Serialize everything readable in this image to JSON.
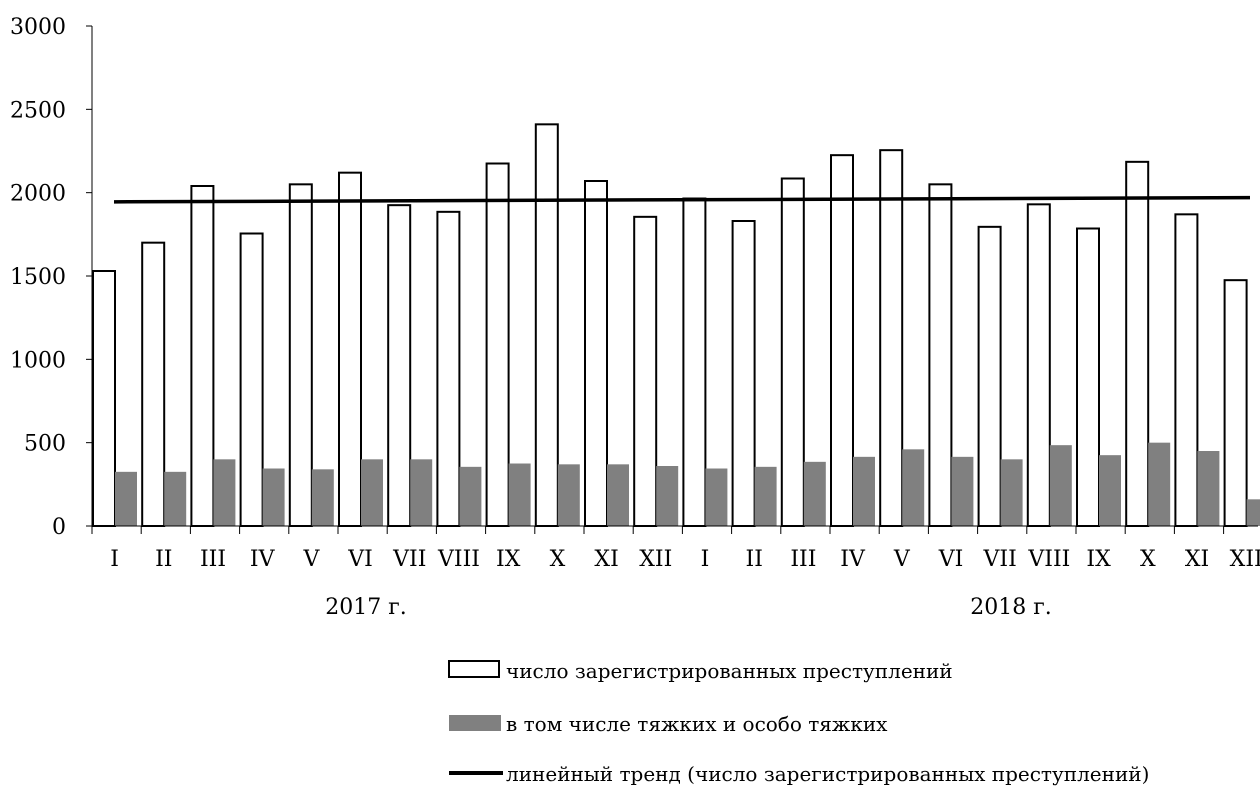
{
  "chart_data": {
    "type": "bar",
    "ylim": [
      0,
      3000
    ],
    "yticks": [
      "0",
      "500",
      "1000",
      "1500",
      "2000",
      "2500",
      "3000"
    ],
    "categories": [
      "I",
      "II",
      "III",
      "IV",
      "V",
      "VI",
      "VII",
      "VIII",
      "IX",
      "X",
      "XI",
      "XII",
      "I",
      "II",
      "III",
      "IV",
      "V",
      "VI",
      "VII",
      "VIII",
      "IX",
      "X",
      "XI",
      "XII"
    ],
    "groups": [
      {
        "label": "2017  г."
      },
      {
        "label": "2018 г."
      }
    ],
    "series": [
      {
        "name": "число зарегистрированных преступлений",
        "color": "#ffffff",
        "values": [
          1530,
          1700,
          2040,
          1755,
          2050,
          2120,
          1925,
          1885,
          2175,
          2410,
          2070,
          1855,
          1965,
          1830,
          2085,
          2225,
          2255,
          2050,
          1795,
          1930,
          1785,
          2185,
          1870,
          1475
        ]
      },
      {
        "name": "в том числе тяжких и особо тяжких",
        "color": "#808080",
        "values": [
          325,
          325,
          400,
          345,
          340,
          400,
          400,
          355,
          375,
          370,
          370,
          360,
          345,
          355,
          385,
          415,
          460,
          415,
          400,
          485,
          425,
          500,
          450,
          160
        ]
      }
    ],
    "trend": {
      "name": "линейный тренд (число зарегистрированных преступлений)",
      "color": "#000000",
      "start": 1945,
      "end": 1970
    },
    "legend_position": "bottom",
    "grid": false
  }
}
